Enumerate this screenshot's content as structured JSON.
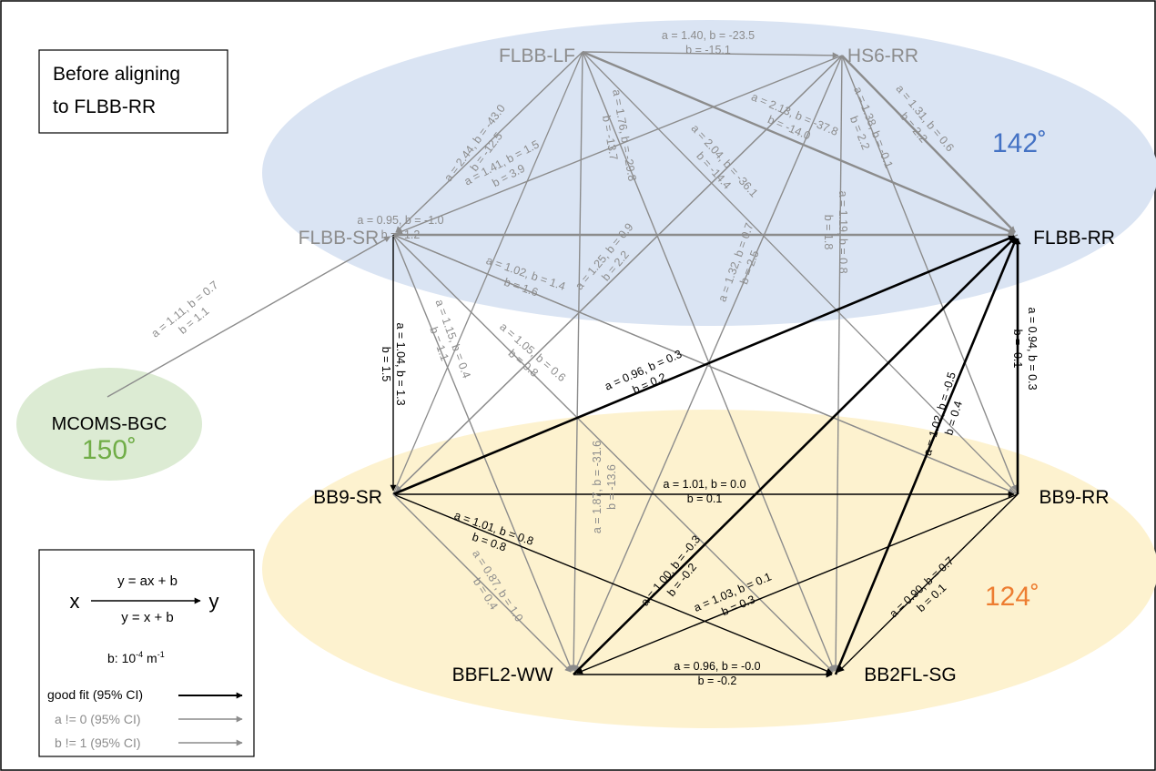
{
  "title_box": {
    "line1": "Before aligning",
    "line2": "to FLBB-RR"
  },
  "groups": {
    "top_angle": "142˚",
    "bottom_angle": "124˚",
    "mcoms_angle": "150˚",
    "colors": {
      "top_fill": "#dae4f3",
      "bottom_fill": "#fdf2cf",
      "mcoms_fill": "#dcebd3",
      "top_angle": "#4472c4",
      "bottom_angle": "#ed7d31",
      "mcoms_angle": "#70ad47"
    }
  },
  "nodes": {
    "flbb_lf": "FLBB-LF",
    "hs6_rr": "HS6-RR",
    "flbb_sr": "FLBB-SR",
    "flbb_rr": "FLBB-RR",
    "mcoms_bgc": "MCOMS-BGC",
    "bb9_sr": "BB9-SR",
    "bb9_rr": "BB9-RR",
    "bbfl2_ww": "BBFL2-WW",
    "bb2fl_sg": "BB2FL-SG"
  },
  "edges": [
    {
      "id": "lf-hs6",
      "fit": "gray",
      "a_label": "a = 1.40, b = -23.5",
      "b_label": "b = -15.1"
    },
    {
      "id": "lf-sr",
      "fit": "gray",
      "a_label": "a = 2.44, b = -43.0",
      "b_label": "b = -12.5"
    },
    {
      "id": "lf-rr",
      "fit": "gray",
      "a_label": "a = 2.13, b = -37.8",
      "b_label": "b = -14.0"
    },
    {
      "id": "lf-bbfl2",
      "fit": "gray",
      "a_label": "a = 1.76, b = -29.8",
      "b_label": "b = -13.7"
    },
    {
      "id": "lf-bb2fl",
      "fit": "gray",
      "a_label": "a = 2.04, b = -36.1",
      "b_label": "b = -14.4"
    },
    {
      "id": "hs6-sr",
      "fit": "gray",
      "a_label": "a = 1.41, b = 1.5",
      "b_label": "b = 3.9"
    },
    {
      "id": "hs6-rr",
      "fit": "gray",
      "a_label": "a = 1.31, b = 0.6",
      "b_label": "b = 2.2"
    },
    {
      "id": "hs6-bb9rr",
      "fit": "gray",
      "a_label": "a = 1.38, b = -0.1",
      "b_label": "b = 2.2"
    },
    {
      "id": "hs6-bb2fl",
      "fit": "gray",
      "a_label": "a = 1.19, b = 0.8",
      "b_label": "b = 1.8"
    },
    {
      "id": "hs6-bb9sr",
      "fit": "gray",
      "a_label": "a = 1.25, b = 0.9",
      "b_label": "b = 2.2"
    },
    {
      "id": "hs6-bbfl2",
      "fit": "gray",
      "a_label": "a = 1.32, b = 0.7",
      "b_label": "b = 2.5"
    },
    {
      "id": "sr-rr",
      "fit": "gray",
      "a_label": "a = 0.95, b = -1.0",
      "b_label": "b = -1.2"
    },
    {
      "id": "sr-bb9rr",
      "fit": "gray",
      "a_label": "a = 1.02, b = 1.4",
      "b_label": "b = 1.6"
    },
    {
      "id": "sr-bb2fl",
      "fit": "gray",
      "a_label": "a = 1.05, b = 0.6",
      "b_label": "b = 0.8"
    },
    {
      "id": "sr-bbfl2",
      "fit": "gray",
      "a_label": "a = 1.15, b = 0.4",
      "b_label": "b = 1.1"
    },
    {
      "id": "sr-bb9sr",
      "fit": "good",
      "a_label": "a = 1.04, b = 1.3",
      "b_label": "b = 1.5"
    },
    {
      "id": "mcoms-sr",
      "fit": "gray",
      "a_label": "a = 1.11, b = 0.7",
      "b_label": "b = 1.1"
    },
    {
      "id": "bb9sr-rr",
      "fit": "good",
      "a_label": "a = 0.96, b = 0.3",
      "b_label": "b = 0.2"
    },
    {
      "id": "bbfl2-rr",
      "fit": "good",
      "a_label": "a = 1.00, b = -0.3",
      "b_label": "b = -0.2"
    },
    {
      "id": "bb2fl-rr",
      "fit": "good",
      "a_label": "a = 1.02, b = -0.5",
      "b_label": "b = 0.4"
    },
    {
      "id": "bb9rr-rr",
      "fit": "good",
      "a_label": "a = 0.94, b = 0.3",
      "b_label": "b = -0.1"
    },
    {
      "id": "bb9sr-bb9rr",
      "fit": "good",
      "a_label": "a = 1.01, b = 0.0",
      "b_label": "b = 0.1"
    },
    {
      "id": "bb9sr-bb2fl",
      "fit": "good",
      "a_label": "a = 1.01, b = 0.8",
      "b_label": "b = 0.8"
    },
    {
      "id": "bb9sr-bbfl2",
      "fit": "gray",
      "a_label": "a = 0.87, b = 1.0",
      "b_label": "b = 0.4"
    },
    {
      "id": "bb9rr-bbfl2",
      "fit": "good",
      "a_label": "a = 1.03, b = 0.1",
      "b_label": "b = 0.3"
    },
    {
      "id": "bb9rr-bb2fl",
      "fit": "good",
      "a_label": "a = 0.90, b = 0.7",
      "b_label": "b = 0.1"
    },
    {
      "id": "bbfl2-bb2fl",
      "fit": "good",
      "a_label": "a = 0.96, b = -0.0",
      "b_label": "b = -0.2"
    },
    {
      "id": "bbfl2-lf-lbl",
      "fit": "gray",
      "a_label": "a = 1.87, b = -31.6",
      "b_label": "b = -13.6"
    }
  ],
  "legend": {
    "x": "x",
    "y": "y",
    "eq_top": "y = ax + b",
    "eq_bottom": "y = x + b",
    "units_prefix": "b: 10",
    "units_exp1": "-4",
    "units_mid": " m",
    "units_exp2": "-1",
    "good_fit": "good fit (95% CI)",
    "a_ne_0": "a != 0 (95% CI)",
    "b_ne_1": "b != 1 (95% CI)"
  }
}
